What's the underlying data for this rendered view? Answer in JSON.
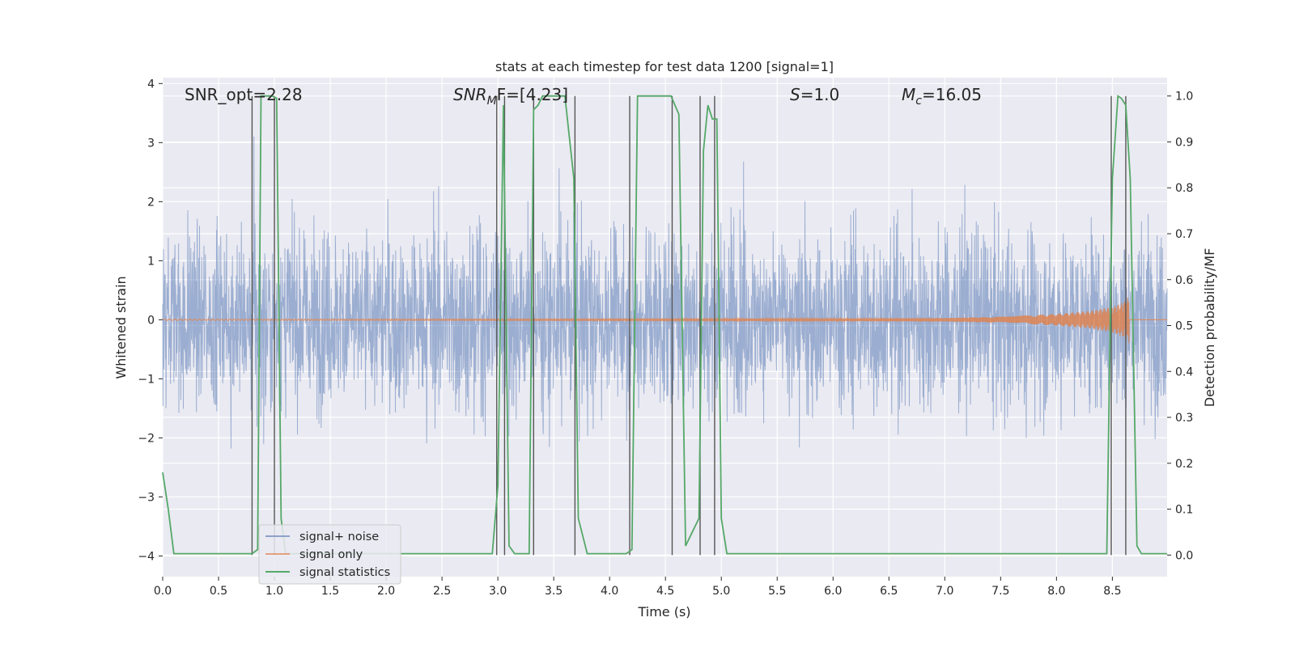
{
  "chart_data": {
    "type": "line",
    "title": "stats at each timestep for test data 1200 [signal=1]",
    "xlabel": "Time (s)",
    "ylabel_left": "Whitened strain",
    "ylabel_right": "Detection probability/MF",
    "xlim": [
      0.0,
      8.99
    ],
    "ylim_left": [
      -4.35,
      4.1
    ],
    "ylim_right": [
      -0.047,
      1.04
    ],
    "xticks": [
      "0.0",
      "0.5",
      "1.0",
      "1.5",
      "2.0",
      "2.5",
      "3.0",
      "3.5",
      "4.0",
      "4.5",
      "5.0",
      "5.5",
      "6.0",
      "6.5",
      "7.0",
      "7.5",
      "8.0",
      "8.5"
    ],
    "yticks_left": [
      "4",
      "3",
      "2",
      "1",
      "0",
      "−1",
      "−2",
      "−3",
      "−4"
    ],
    "yticks_right": [
      "1.0",
      "0.9",
      "0.8",
      "0.7",
      "0.6",
      "0.5",
      "0.4",
      "0.3",
      "0.2",
      "0.1",
      "0.0"
    ],
    "grid": true,
    "legend_placement": "lower-left",
    "annotations": {
      "snr_opt": "SNR_opt=2.28",
      "snr_mf_base": "SNR",
      "snr_mf_sub": "M",
      "snr_mf_rest": "F=[4.23]",
      "s_italic": "S",
      "s_rest": "=1.0",
      "mc_base": "M",
      "mc_sub": "c",
      "mc_rest": "=16.05"
    },
    "series": [
      {
        "name": "signal+ noise",
        "color": "#4c72b0",
        "note_values": "dense whitened noise, amplitude roughly within ±3, peaks to ±4"
      },
      {
        "name": "signal only",
        "color": "#dd8452",
        "envelope": {
          "t": [
            0.0,
            6.0,
            7.0,
            7.5,
            8.0,
            8.3,
            8.5,
            8.6,
            8.65
          ],
          "amp": [
            0.01,
            0.02,
            0.03,
            0.05,
            0.1,
            0.15,
            0.22,
            0.3,
            0.4
          ]
        }
      },
      {
        "name": "signal statistics",
        "color": "#55a868",
        "x": [
          0.0,
          0.05,
          0.1,
          0.75,
          0.8,
          0.85,
          0.88,
          0.92,
          0.98,
          1.02,
          1.06,
          1.1,
          2.95,
          3.0,
          3.05,
          3.1,
          3.15,
          3.2,
          3.28,
          3.32,
          3.36,
          3.4,
          3.45,
          3.5,
          3.6,
          3.68,
          3.72,
          3.8,
          3.9,
          4.15,
          4.2,
          4.25,
          4.3,
          4.5,
          4.55,
          4.62,
          4.68,
          4.74,
          4.8,
          4.84,
          4.88,
          4.92,
          4.96,
          5.0,
          5.05,
          5.1,
          8.45,
          8.5,
          8.55,
          8.58,
          8.62,
          8.66,
          8.72,
          8.76,
          8.8,
          8.99
        ],
        "y": [
          0.18,
          0.1,
          0.003,
          0.003,
          0.003,
          0.012,
          1.0,
          1.0,
          1.0,
          0.995,
          0.08,
          0.003,
          0.003,
          0.15,
          0.98,
          0.02,
          0.003,
          0.003,
          0.003,
          0.97,
          0.98,
          1.0,
          1.0,
          1.0,
          1.0,
          0.82,
          0.08,
          0.003,
          0.003,
          0.003,
          0.012,
          1.0,
          1.0,
          1.0,
          1.0,
          0.96,
          0.02,
          0.05,
          0.08,
          0.88,
          0.98,
          0.95,
          0.95,
          0.08,
          0.003,
          0.003,
          0.003,
          0.82,
          1.0,
          0.995,
          0.98,
          0.82,
          0.02,
          0.003,
          0.003,
          0.003
        ]
      }
    ],
    "vertical_markers_x": [
      0.8,
      1.0,
      2.99,
      3.06,
      3.32,
      3.69,
      4.18,
      4.56,
      4.81,
      4.94,
      8.49,
      8.62
    ]
  }
}
